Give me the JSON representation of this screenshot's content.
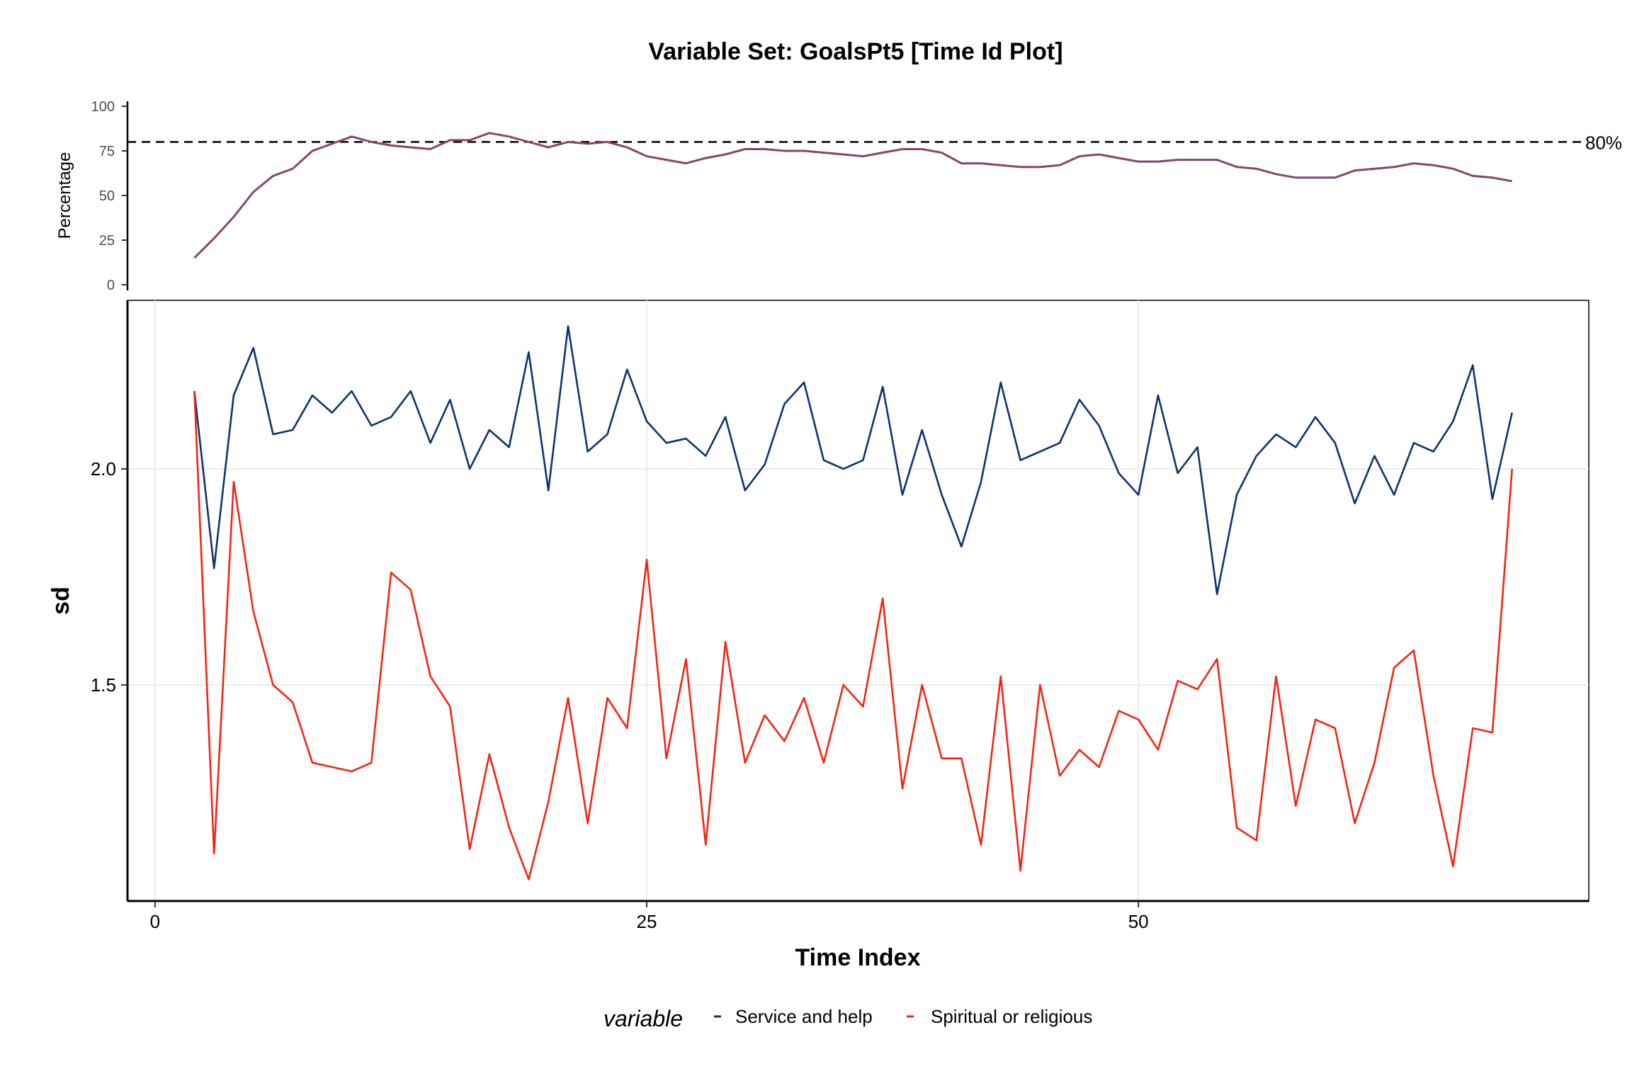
{
  "title": "Variable Set: GoalsPt5 [Time Id Plot]",
  "chart_data": [
    {
      "type": "line",
      "ylabel": "Percentage",
      "ylim": [
        0,
        100
      ],
      "yticks": [
        0,
        25,
        50,
        75,
        100
      ],
      "xlim": [
        0,
        72
      ],
      "reference_line": {
        "value": 80,
        "label": "80%",
        "style": "dashed"
      },
      "x": [
        2,
        3,
        4,
        5,
        6,
        7,
        8,
        9,
        10,
        11,
        12,
        13,
        14,
        15,
        16,
        17,
        18,
        19,
        20,
        21,
        22,
        23,
        24,
        25,
        26,
        27,
        28,
        29,
        30,
        31,
        32,
        33,
        34,
        35,
        36,
        37,
        38,
        39,
        40,
        41,
        42,
        43,
        44,
        45,
        46,
        47,
        48,
        49,
        50,
        51,
        52,
        53,
        54,
        55,
        56,
        57,
        58,
        59,
        60,
        61,
        62,
        63,
        64,
        65,
        66,
        67,
        68,
        69
      ],
      "values": [
        15,
        26,
        38,
        52,
        61,
        65,
        75,
        79,
        83,
        80,
        78,
        77,
        76,
        81,
        81,
        85,
        83,
        80,
        77,
        80,
        79,
        80,
        77,
        72,
        70,
        68,
        71,
        73,
        76,
        76,
        75,
        75,
        74,
        73,
        72,
        74,
        76,
        76,
        74,
        68,
        68,
        67,
        66,
        66,
        67,
        72,
        73,
        71,
        69,
        69,
        70,
        70,
        70,
        66,
        65,
        62,
        60,
        60,
        60,
        64,
        65,
        66,
        68,
        67,
        65,
        61,
        60,
        58
      ]
    },
    {
      "type": "line",
      "xlabel": "Time Index",
      "ylabel": "sd",
      "xlim": [
        -1.4,
        72.9
      ],
      "ylim": [
        1.0,
        2.39
      ],
      "xticks": [
        0,
        25,
        50
      ],
      "yticks": [
        1.5,
        2.0
      ],
      "ytick_labels": [
        "1.5",
        "2.0"
      ],
      "grid": true,
      "legend": {
        "title": "variable",
        "position": "bottom"
      },
      "x": [
        2,
        3,
        4,
        5,
        6,
        7,
        8,
        9,
        10,
        11,
        12,
        13,
        14,
        15,
        16,
        17,
        18,
        19,
        20,
        21,
        22,
        23,
        24,
        25,
        26,
        27,
        28,
        29,
        30,
        31,
        32,
        33,
        34,
        35,
        36,
        37,
        38,
        39,
        40,
        41,
        42,
        43,
        44,
        45,
        46,
        47,
        48,
        49,
        50,
        51,
        52,
        53,
        54,
        55,
        56,
        57,
        58,
        59,
        60,
        61,
        62,
        63,
        64,
        65,
        66,
        67,
        68,
        69
      ],
      "series": [
        {
          "name": "Service and help",
          "color": "#0c3372",
          "values": [
            2.18,
            1.77,
            2.17,
            2.28,
            2.08,
            2.09,
            2.17,
            2.13,
            2.18,
            2.1,
            2.12,
            2.18,
            2.06,
            2.16,
            2.0,
            2.09,
            2.05,
            2.27,
            1.95,
            2.33,
            2.04,
            2.08,
            2.23,
            2.11,
            2.06,
            2.07,
            2.03,
            2.12,
            1.95,
            2.01,
            2.15,
            2.2,
            2.02,
            2.0,
            2.02,
            2.19,
            1.94,
            2.09,
            1.94,
            1.82,
            1.97,
            2.2,
            2.02,
            2.04,
            2.06,
            2.16,
            2.1,
            1.99,
            1.94,
            2.17,
            1.99,
            2.05,
            1.71,
            1.94,
            2.03,
            2.08,
            2.05,
            2.12,
            2.06,
            1.92,
            2.03,
            1.94,
            2.06,
            2.04,
            2.11,
            2.24,
            1.93,
            2.13
          ]
        },
        {
          "name": "Spiritual or religious",
          "color": "#f22613",
          "values": [
            2.18,
            1.11,
            1.97,
            1.67,
            1.5,
            1.46,
            1.32,
            1.31,
            1.3,
            1.32,
            1.76,
            1.72,
            1.52,
            1.45,
            1.12,
            1.34,
            1.17,
            1.05,
            1.23,
            1.47,
            1.18,
            1.47,
            1.4,
            1.79,
            1.33,
            1.56,
            1.13,
            1.6,
            1.32,
            1.43,
            1.37,
            1.47,
            1.32,
            1.5,
            1.45,
            1.7,
            1.26,
            1.5,
            1.33,
            1.33,
            1.13,
            1.52,
            1.07,
            1.5,
            1.29,
            1.35,
            1.31,
            1.44,
            1.42,
            1.35,
            1.51,
            1.49,
            1.56,
            1.17,
            1.14,
            1.52,
            1.22,
            1.42,
            1.4,
            1.18,
            1.32,
            1.54,
            1.58,
            1.29,
            1.08,
            1.4,
            1.39,
            2.0
          ]
        }
      ]
    }
  ]
}
